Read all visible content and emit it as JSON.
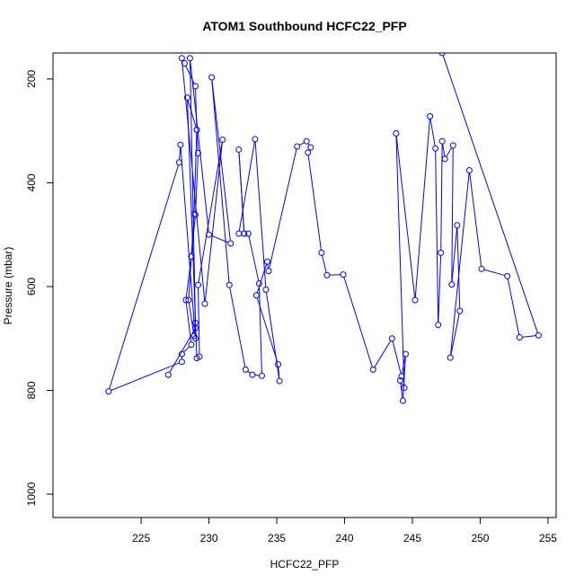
{
  "chart_data": {
    "type": "line",
    "title": "ATOM1 Southbound HCFC22_PFP",
    "xlabel": "HCFC22_PFP",
    "ylabel": "Pressure (mbar)",
    "xlim": [
      218.5,
      255.6
    ],
    "ylim": [
      1045,
      150
    ],
    "y_reversed": true,
    "x_ticks": [
      225,
      230,
      235,
      240,
      245,
      250,
      255
    ],
    "y_ticks": [
      200,
      400,
      600,
      800,
      1000
    ],
    "grid": false,
    "line_color": "#0000ff",
    "marker": "open-circle",
    "series": [
      {
        "points": [
          [
            227.0,
            770
          ],
          [
            229.0,
            680
          ],
          [
            228.9,
            695
          ],
          [
            228.5,
            626
          ],
          [
            228.7,
            542
          ],
          [
            229.0,
            462
          ],
          [
            229.2,
            343
          ],
          [
            229.1,
            298
          ],
          [
            229.0,
            214
          ],
          [
            228.2,
            170
          ],
          [
            228.0,
            160
          ],
          [
            229.7,
            633
          ],
          [
            231.0,
            317
          ],
          [
            229.2,
            597
          ],
          [
            229.3,
            735
          ],
          [
            229.1,
            738
          ],
          [
            228.4,
            236
          ],
          [
            229.1,
            298
          ],
          [
            228.9,
            460
          ],
          [
            228.7,
            542
          ],
          [
            228.3,
            626
          ],
          [
            228.7,
            712
          ],
          [
            228.0,
            730
          ],
          [
            228.0,
            745
          ],
          [
            222.6,
            802
          ],
          [
            227.8,
            361
          ],
          [
            227.9,
            327
          ],
          [
            229.0,
            700
          ],
          [
            229.0,
            670
          ],
          [
            228.6,
            160
          ],
          [
            230.0,
            500
          ],
          [
            231.6,
            517
          ],
          [
            230.2,
            197
          ],
          [
            231.5,
            597
          ],
          [
            232.7,
            760
          ],
          [
            233.2,
            770
          ],
          [
            233.9,
            772
          ],
          [
            233.7,
            594
          ],
          [
            232.9,
            498
          ],
          [
            232.6,
            498
          ],
          [
            232.2,
            336
          ],
          [
            232.6,
            498
          ],
          [
            232.2,
            498
          ],
          [
            233.4,
            316
          ],
          [
            234.2,
            606
          ],
          [
            235.2,
            782
          ],
          [
            235.1,
            750
          ],
          [
            233.5,
            617
          ],
          [
            234.3,
            552
          ],
          [
            234.4,
            570
          ],
          [
            236.5,
            330
          ],
          [
            237.2,
            320
          ],
          [
            237.5,
            332
          ],
          [
            237.3,
            342
          ],
          [
            238.3,
            535
          ],
          [
            238.7,
            578
          ],
          [
            239.9,
            577
          ],
          [
            242.1,
            760
          ],
          [
            243.5,
            700
          ],
          [
            244.2,
            773
          ],
          [
            244.5,
            730
          ],
          [
            244.3,
            820
          ],
          [
            244.1,
            781
          ],
          [
            244.4,
            795
          ],
          [
            243.8,
            305
          ],
          [
            245.2,
            626
          ],
          [
            246.3,
            272
          ],
          [
            246.7,
            334
          ],
          [
            246.9,
            674
          ],
          [
            247.1,
            535
          ],
          [
            247.2,
            320
          ],
          [
            247.4,
            354
          ],
          [
            248.0,
            328
          ],
          [
            247.9,
            596
          ],
          [
            248.3,
            482
          ],
          [
            248.5,
            647
          ],
          [
            247.8,
            737
          ],
          [
            249.2,
            376
          ],
          [
            250.1,
            566
          ],
          [
            252.0,
            580
          ],
          [
            252.9,
            698
          ],
          [
            254.3,
            694
          ],
          [
            247.2,
            150
          ]
        ]
      }
    ]
  }
}
